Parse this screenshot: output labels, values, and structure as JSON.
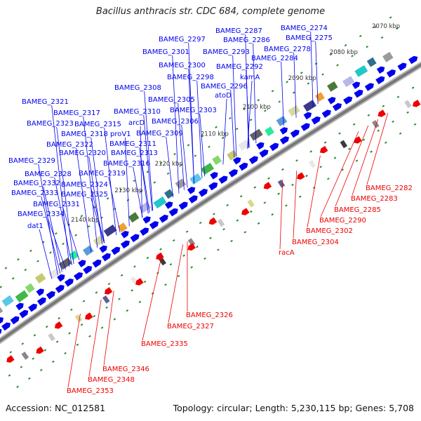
{
  "title": "Bacillus anthracis str. CDC 684, complete genome",
  "footer": {
    "accession": "Accession: NC_012581",
    "summary": "Topology: circular; Length: 5,230,115 bp; Genes: 5,708"
  },
  "colors": {
    "forward_gene": "#0000ee",
    "reverse_gene": "#ee0000",
    "backbone": "#777777",
    "dots": "#2a8a2a"
  },
  "ticks": [
    "2070 kbp",
    "2080 kbp",
    "2090 kbp",
    "2100 kbp",
    "2110 kbp",
    "2120 kbp",
    "2130 kbp",
    "2140 kbp"
  ],
  "forward_labels": [
    "BAMEG_2274",
    "BAMEG_2287",
    "BAMEG_2297",
    "BAMEG_2286",
    "BAMEG_2275",
    "BAMEG_2301",
    "BAMEG_2293",
    "BAMEG_2278",
    "BAMEG_2284",
    "BAMEG_2300",
    "BAMEG_2292",
    "kamA",
    "BAMEG_2298",
    "BAMEG_2308",
    "BAMEG_2296",
    "atoD",
    "BAMEG_2305",
    "BAMEG_2321",
    "BAMEG_2303",
    "BAMEG_2317",
    "BAMEG_2310",
    "BAMEG_2306",
    "BAMEG_2323",
    "BAMEG_2315",
    "arcD",
    "proV1",
    "BAMEG_2318",
    "BAMEG_2309",
    "BAMEG_2322",
    "BAMEG_2311",
    "BAMEG_2320",
    "BAMEG_2313",
    "BAMEG_2329",
    "BAMEG_2316",
    "BAMEG_2328",
    "BAMEG_2319",
    "BAMEG_2332",
    "BAMEG_2324",
    "BAMEG_2333",
    "BAMEG_2325",
    "BAMEG_2331",
    "BAMEG_2334",
    "dat1"
  ],
  "reverse_labels": [
    "BAMEG_2282",
    "BAMEG_2283",
    "BAMEG_2285",
    "BAMEG_2290",
    "BAMEG_2302",
    "BAMEG_2304",
    "racA",
    "BAMEG_2326",
    "BAMEG_2327",
    "BAMEG_2335",
    "BAMEG_2346",
    "BAMEG_2348",
    "BAMEG_2353"
  ]
}
